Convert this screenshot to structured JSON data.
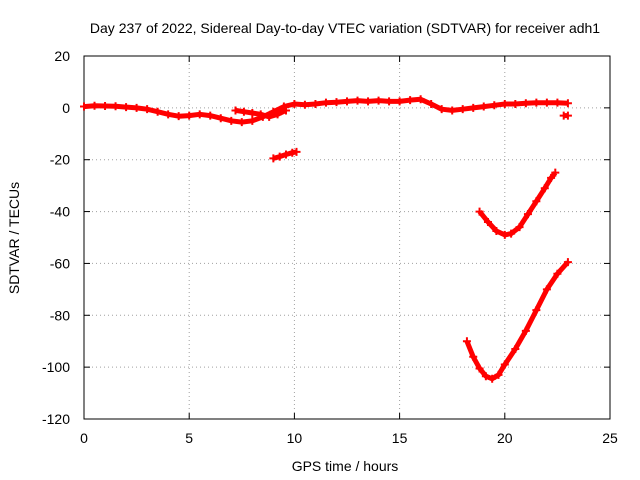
{
  "chart_data": {
    "type": "scatter",
    "title": "Day 237 of 2022, Sidereal Day-to-day VTEC variation (SDTVAR) for receiver adh1",
    "xlabel": "GPS time / hours",
    "ylabel": "SDTVAR / TECUs",
    "xlim": [
      0,
      25
    ],
    "ylim": [
      -120,
      20
    ],
    "xticks": [
      0,
      5,
      10,
      15,
      20,
      25
    ],
    "yticks": [
      -120,
      -100,
      -80,
      -60,
      -40,
      -20,
      0,
      20
    ],
    "grid": true,
    "color": "#ff0000",
    "series": [
      {
        "name": "main",
        "points": [
          [
            0,
            0.5
          ],
          [
            0.5,
            0.8
          ],
          [
            1,
            0.7
          ],
          [
            1.5,
            0.6
          ],
          [
            2,
            0.3
          ],
          [
            2.5,
            0
          ],
          [
            3,
            -0.5
          ],
          [
            3.5,
            -1.5
          ],
          [
            4,
            -2.5
          ],
          [
            4.5,
            -3.2
          ],
          [
            5,
            -3
          ],
          [
            5.5,
            -2.5
          ],
          [
            6,
            -3
          ],
          [
            6.5,
            -4
          ],
          [
            7,
            -5
          ],
          [
            7.5,
            -5.5
          ],
          [
            8,
            -5
          ],
          [
            8.5,
            -3.5
          ],
          [
            9,
            -1.5
          ],
          [
            9.5,
            0.5
          ],
          [
            10,
            1.5
          ],
          [
            10.5,
            1.2
          ],
          [
            11,
            1.5
          ],
          [
            11.5,
            2
          ],
          [
            12,
            2.2
          ],
          [
            12.5,
            2.5
          ],
          [
            13,
            2.8
          ],
          [
            13.5,
            2.5
          ],
          [
            14,
            2.8
          ],
          [
            14.5,
            2.5
          ],
          [
            15,
            2.5
          ],
          [
            15.5,
            3
          ],
          [
            16,
            3.3
          ],
          [
            16.5,
            1.5
          ],
          [
            17,
            -0.5
          ],
          [
            17.5,
            -1
          ],
          [
            18,
            -0.5
          ],
          [
            18.5,
            0
          ],
          [
            19,
            0.5
          ],
          [
            19.5,
            1
          ],
          [
            20,
            1.5
          ],
          [
            20.5,
            1.5
          ],
          [
            21,
            1.8
          ],
          [
            21.5,
            2
          ],
          [
            22,
            2
          ],
          [
            22.5,
            2
          ],
          [
            23,
            1.8
          ]
        ]
      },
      {
        "name": "segment-7h",
        "points": [
          [
            7.2,
            -1
          ],
          [
            7.6,
            -1.5
          ],
          [
            8,
            -2
          ],
          [
            8.4,
            -2.5
          ],
          [
            8.8,
            -3.5
          ],
          [
            9.2,
            -2.5
          ],
          [
            9.6,
            -1
          ]
        ]
      },
      {
        "name": "segment-9h",
        "points": [
          [
            9,
            -19.5
          ],
          [
            9.3,
            -18.8
          ],
          [
            9.6,
            -18
          ],
          [
            9.9,
            -17.3
          ],
          [
            10.1,
            -17
          ]
        ]
      },
      {
        "name": "segment-23h",
        "points": [
          [
            22.8,
            -3
          ],
          [
            23,
            -3
          ]
        ]
      },
      {
        "name": "arc-upper",
        "points": [
          [
            18.8,
            -40
          ],
          [
            19.2,
            -44
          ],
          [
            19.6,
            -47.5
          ],
          [
            20,
            -49
          ],
          [
            20.3,
            -48.5
          ],
          [
            20.7,
            -46
          ],
          [
            21.1,
            -41
          ],
          [
            21.5,
            -36
          ],
          [
            21.9,
            -31
          ],
          [
            22.2,
            -27
          ],
          [
            22.4,
            -25
          ]
        ]
      },
      {
        "name": "arc-lower",
        "points": [
          [
            18.2,
            -90
          ],
          [
            18.5,
            -96
          ],
          [
            18.8,
            -100.5
          ],
          [
            19.1,
            -103.5
          ],
          [
            19.4,
            -104.5
          ],
          [
            19.7,
            -103
          ],
          [
            20,
            -99
          ],
          [
            20.5,
            -93
          ],
          [
            21,
            -86
          ],
          [
            21.5,
            -78
          ],
          [
            22,
            -70
          ],
          [
            22.5,
            -64
          ],
          [
            23,
            -59.5
          ]
        ]
      }
    ]
  }
}
